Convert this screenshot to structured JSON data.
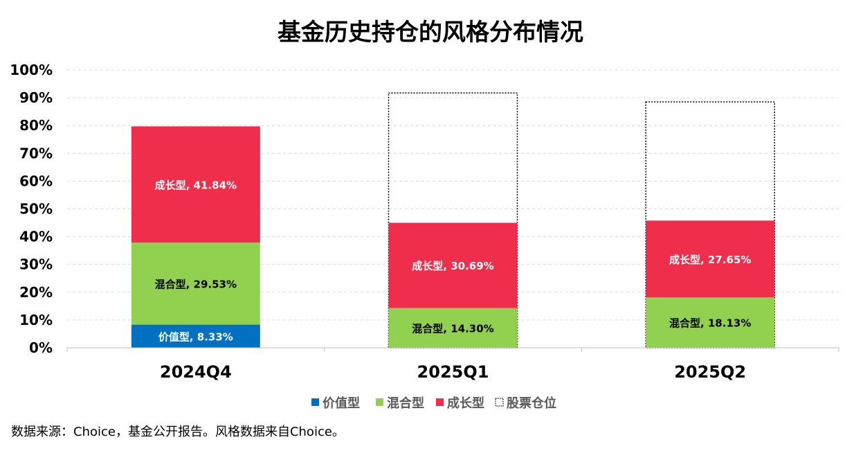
{
  "chart_data": {
    "type": "bar",
    "stacked": true,
    "title": "基金历史持仓的风格分布情况",
    "categories": [
      "2024Q4",
      "2025Q1",
      "2025Q2"
    ],
    "series": [
      {
        "name": "价值型",
        "color": "#0070C0",
        "label_color": "#ffffff",
        "values": [
          8.33,
          0,
          0
        ],
        "labels": [
          "价值型, 8.33%",
          "",
          ""
        ]
      },
      {
        "name": "混合型",
        "color": "#92D050",
        "label_color": "#000000",
        "values": [
          29.53,
          14.3,
          18.13
        ],
        "labels": [
          "混合型, 29.53%",
          "混合型, 14.30%",
          "混合型, 18.13%"
        ]
      },
      {
        "name": "成长型",
        "color": "#EE2E4A",
        "label_color": "#ffffff",
        "values": [
          41.84,
          30.69,
          27.65
        ],
        "labels": [
          "成长型, 41.84%",
          "成长型, 30.69%",
          "成长型, 27.65%"
        ]
      }
    ],
    "outline_series": {
      "name": "股票仓位",
      "style": "dotted-outline",
      "values": [
        null,
        91.7,
        88.5
      ]
    },
    "yticks": [
      "0%",
      "10%",
      "20%",
      "30%",
      "40%",
      "50%",
      "60%",
      "70%",
      "80%",
      "90%",
      "100%"
    ],
    "ylim": [
      0,
      100
    ],
    "grid": true,
    "legend_position": "bottom"
  },
  "source_note": "数据来源：Choice，基金公开报告。风格数据来自Choice。"
}
